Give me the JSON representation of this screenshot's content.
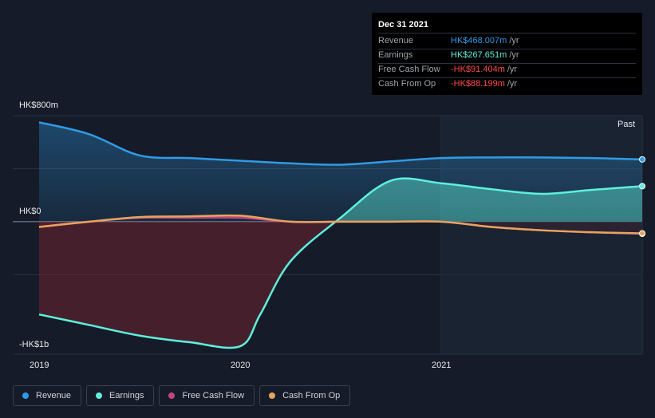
{
  "tooltip": {
    "date": "Dec 31 2021",
    "rows": [
      {
        "label": "Revenue",
        "value": "HK$468.007m",
        "unit": "/yr",
        "color": "#2f9be6"
      },
      {
        "label": "Earnings",
        "value": "HK$267.651m",
        "unit": "/yr",
        "color": "#5ef0dc"
      },
      {
        "label": "Free Cash Flow",
        "value": "-HK$91.404m",
        "unit": "/yr",
        "color": "#ff4a4a"
      },
      {
        "label": "Cash From Op",
        "value": "-HK$88.199m",
        "unit": "/yr",
        "color": "#ff4a4a"
      }
    ]
  },
  "past_label": "Past",
  "legend": [
    {
      "label": "Revenue",
      "color": "#2f9be6"
    },
    {
      "label": "Earnings",
      "color": "#5ef0dc"
    },
    {
      "label": "Free Cash Flow",
      "color": "#c2467f"
    },
    {
      "label": "Cash From Op",
      "color": "#e8a35e"
    }
  ],
  "chart_data": {
    "type": "area",
    "y_tick_labels": [
      "HK$800m",
      "HK$0",
      "-HK$1b"
    ],
    "x_tick_labels": [
      "2019",
      "2020",
      "2021"
    ],
    "ylim": [
      -1000,
      800
    ],
    "xlim": [
      2019.0,
      2022.0
    ],
    "series": [
      {
        "name": "Revenue",
        "color": "#2f9be6",
        "x": [
          2019.0,
          2019.25,
          2019.5,
          2019.75,
          2020.0,
          2020.25,
          2020.5,
          2020.75,
          2021.0,
          2021.25,
          2021.5,
          2021.75,
          2022.0
        ],
        "y": [
          750,
          660,
          500,
          480,
          460,
          440,
          430,
          455,
          480,
          485,
          485,
          480,
          470
        ]
      },
      {
        "name": "Earnings",
        "color": "#5ef0dc",
        "x": [
          2019.0,
          2019.25,
          2019.5,
          2019.75,
          2020.0,
          2020.1,
          2020.25,
          2020.5,
          2020.75,
          2021.0,
          2021.25,
          2021.5,
          2021.75,
          2022.0
        ],
        "y": [
          -700,
          -780,
          -860,
          -910,
          -940,
          -700,
          -300,
          30,
          310,
          290,
          245,
          210,
          240,
          268
        ]
      },
      {
        "name": "Free Cash Flow",
        "color": "#c2467f",
        "x": [
          2019.0,
          2019.25,
          2019.5,
          2019.75,
          2020.0,
          2020.25,
          2020.5,
          2020.75,
          2021.0,
          2021.25,
          2021.5,
          2021.75,
          2022.0
        ],
        "y": [
          -40,
          0,
          30,
          30,
          30,
          0,
          0,
          0,
          0,
          -40,
          -65,
          -80,
          -91
        ]
      },
      {
        "name": "Cash From Op",
        "color": "#e8a35e",
        "x": [
          2019.0,
          2019.25,
          2019.5,
          2019.75,
          2020.0,
          2020.25,
          2020.5,
          2020.75,
          2021.0,
          2021.25,
          2021.5,
          2021.75,
          2022.0
        ],
        "y": [
          -40,
          0,
          35,
          40,
          45,
          0,
          0,
          0,
          0,
          -40,
          -65,
          -80,
          -88
        ]
      }
    ]
  }
}
